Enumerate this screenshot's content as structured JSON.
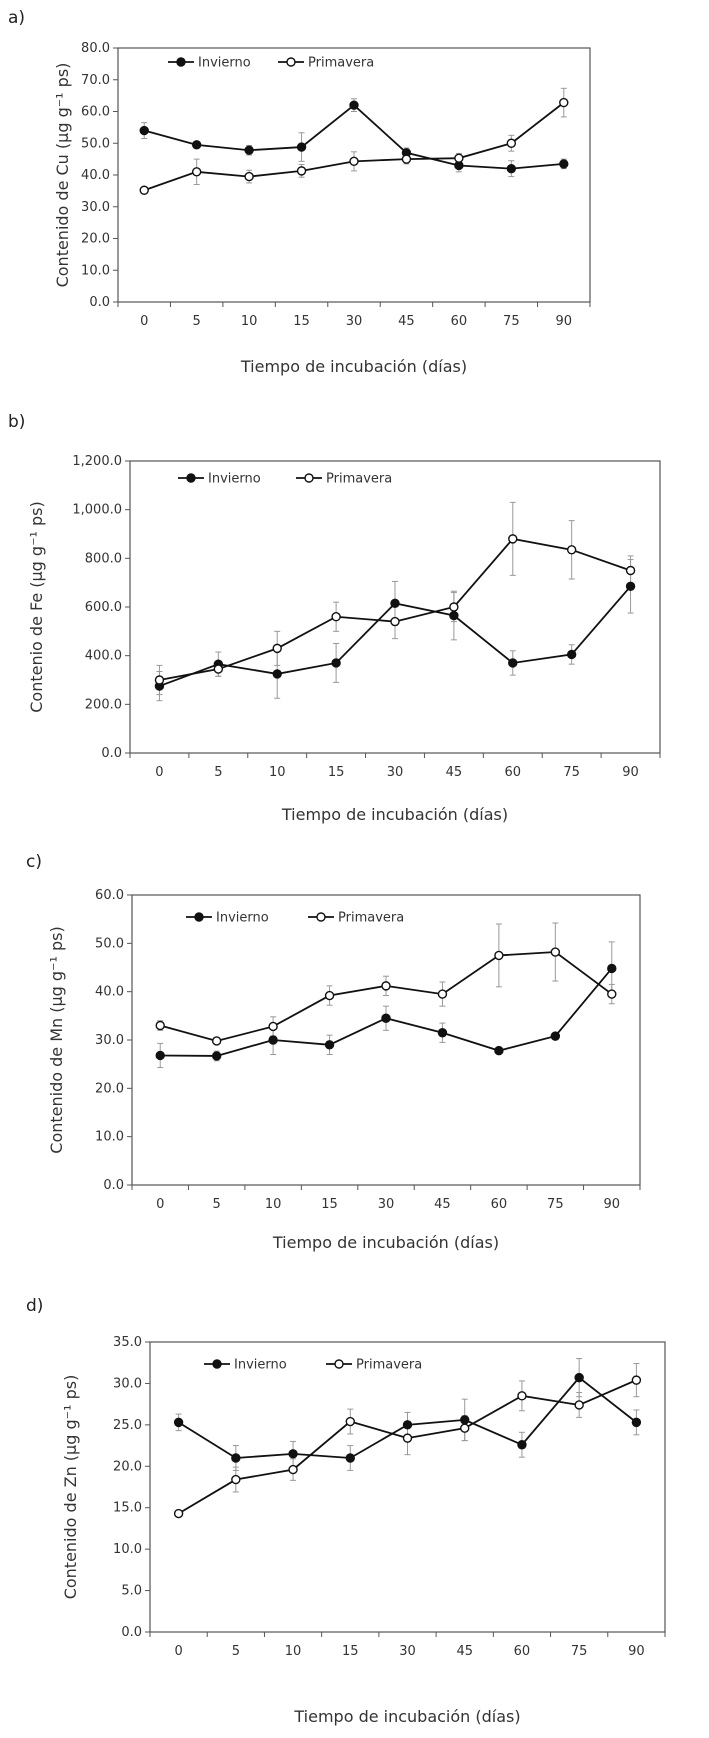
{
  "chart_data": [
    {
      "panel_label": "a)",
      "type": "line",
      "categories": [
        "0",
        "5",
        "10",
        "15",
        "30",
        "45",
        "60",
        "75",
        "90"
      ],
      "ylim": [
        0,
        80
      ],
      "yticks": [
        "0.0",
        "10.0",
        "20.0",
        "30.0",
        "40.0",
        "50.0",
        "60.0",
        "70.0",
        "80.0"
      ],
      "xlabel": "Tiempo de incubación (días)",
      "ylabel": "Contenido de Cu  (μg g⁻¹ ps)",
      "legend_position": "top-left",
      "series": [
        {
          "name": "Invierno",
          "marker": "filled",
          "values": [
            54,
            49.5,
            47.8,
            48.8,
            62,
            47,
            43,
            42,
            43.5
          ],
          "errors": [
            2.5,
            0,
            1.5,
            4.5,
            2,
            1.5,
            2,
            2.5,
            1.5
          ]
        },
        {
          "name": "Primavera",
          "marker": "open",
          "values": [
            35.2,
            41,
            39.5,
            41.3,
            44.3,
            45,
            45.3,
            50,
            62.8
          ],
          "errors": [
            0,
            4,
            2,
            2,
            3,
            1.5,
            1.5,
            2.5,
            4.5
          ]
        }
      ]
    },
    {
      "panel_label": "b)",
      "type": "line",
      "categories": [
        "0",
        "5",
        "10",
        "15",
        "30",
        "45",
        "60",
        "75",
        "90"
      ],
      "ylim": [
        0,
        1200
      ],
      "yticks": [
        "0.0",
        "200.0",
        "400.0",
        "600.0",
        "800.0",
        "1,000.0",
        "1,200.0"
      ],
      "xlabel": "Tiempo de incubación (días)",
      "ylabel": "Contenio de Fe   (μg g⁻¹ ps)",
      "legend_position": "top-left",
      "series": [
        {
          "name": "Invierno",
          "marker": "filled",
          "values": [
            275,
            365,
            325,
            370,
            615,
            565,
            370,
            405,
            685
          ],
          "errors": [
            60,
            50,
            100,
            80,
            90,
            100,
            50,
            40,
            110
          ]
        },
        {
          "name": "Primavera",
          "marker": "open",
          "values": [
            300,
            345,
            430,
            560,
            540,
            600,
            880,
            835,
            750
          ],
          "errors": [
            60,
            30,
            70,
            60,
            70,
            60,
            150,
            120,
            60
          ]
        }
      ]
    },
    {
      "panel_label": "c)",
      "type": "line",
      "categories": [
        "0",
        "5",
        "10",
        "15",
        "30",
        "45",
        "60",
        "75",
        "90"
      ],
      "ylim": [
        0,
        60
      ],
      "yticks": [
        "0.0",
        "10.0",
        "20.0",
        "30.0",
        "40.0",
        "50.0",
        "60.0"
      ],
      "xlabel": "Tiempo de incubación (días)",
      "ylabel": "Contenido de Mn   (μg g⁻¹ ps)",
      "legend_position": "top-left",
      "series": [
        {
          "name": "Invierno",
          "marker": "filled",
          "values": [
            26.8,
            26.7,
            30,
            29,
            34.5,
            31.5,
            27.8,
            30.8,
            44.8
          ],
          "errors": [
            2.5,
            1,
            3,
            2,
            2.5,
            2,
            0,
            0,
            5.5
          ]
        },
        {
          "name": "Primavera",
          "marker": "open",
          "values": [
            33,
            29.8,
            32.8,
            39.2,
            41.2,
            39.5,
            47.5,
            48.2,
            39.5
          ],
          "errors": [
            1,
            0,
            2,
            2,
            2,
            2.5,
            6.5,
            6,
            2
          ]
        }
      ]
    },
    {
      "panel_label": "d)",
      "type": "line",
      "categories": [
        "0",
        "5",
        "10",
        "15",
        "30",
        "45",
        "60",
        "75",
        "90"
      ],
      "ylim": [
        0,
        35
      ],
      "yticks": [
        "0.0",
        "5.0",
        "10.0",
        "15.0",
        "20.0",
        "25.0",
        "30.0",
        "35.0"
      ],
      "xlabel": "Tiempo de incubación (días)",
      "ylabel": "Contenido de Zn   (μg g⁻¹ ps)",
      "legend_position": "top-left",
      "series": [
        {
          "name": "Invierno",
          "marker": "filled",
          "values": [
            25.3,
            21,
            21.5,
            21,
            25,
            25.6,
            22.6,
            30.7,
            25.3
          ],
          "errors": [
            1,
            1.5,
            1.5,
            1.5,
            1.5,
            2.5,
            1.5,
            2.3,
            1.5
          ]
        },
        {
          "name": "Primavera",
          "marker": "open",
          "values": [
            14.3,
            18.4,
            19.6,
            25.4,
            23.4,
            24.6,
            28.5,
            27.4,
            30.4
          ],
          "errors": [
            0,
            1.5,
            1.3,
            1.5,
            2,
            1.5,
            1.8,
            1.5,
            2
          ]
        }
      ]
    }
  ]
}
